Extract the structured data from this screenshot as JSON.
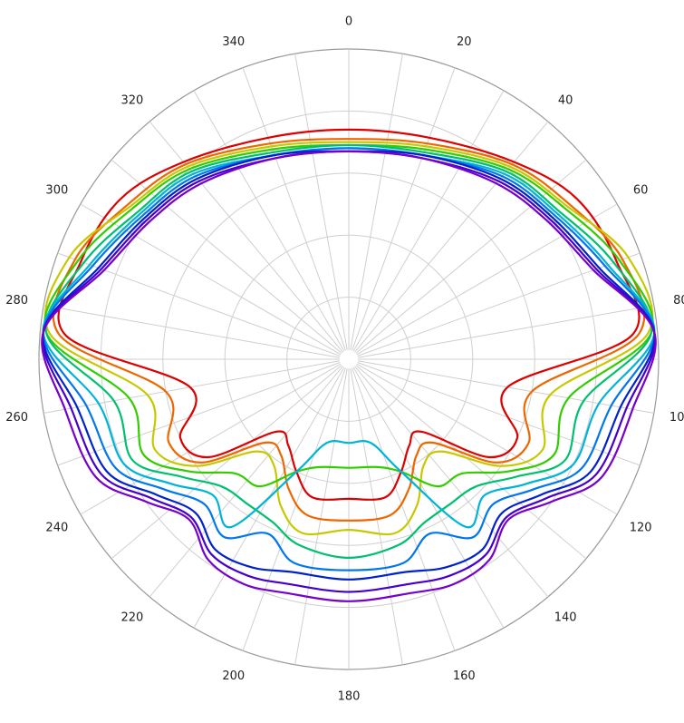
{
  "chart_data": {
    "type": "polar-line",
    "title": "",
    "angle_direction": "clockwise",
    "zero_location": "top",
    "angular_ticks": [
      "0",
      "20",
      "40",
      "60",
      "80",
      "100",
      "120",
      "140",
      "160",
      "180",
      "200",
      "220",
      "240",
      "260",
      "280",
      "300",
      "320",
      "340"
    ],
    "angular_tick_values": [
      0,
      20,
      40,
      60,
      80,
      100,
      120,
      140,
      160,
      180,
      200,
      220,
      240,
      260,
      280,
      300,
      320,
      340
    ],
    "radial_range": [
      0,
      1
    ],
    "radial_rings": [
      0.2,
      0.4,
      0.6,
      0.8,
      1.0
    ],
    "radial_tick_labels_visible": false,
    "spokes_every_deg": 10,
    "grid": true,
    "legend": "none",
    "angles": [
      0,
      20,
      40,
      55,
      70,
      85,
      100,
      115,
      125,
      135,
      145,
      155,
      165,
      180,
      195,
      205,
      215,
      225,
      235,
      245,
      260,
      275,
      290,
      305,
      320,
      340
    ],
    "series": [
      {
        "color": "#dd0000",
        "values": [
          0.74,
          0.76,
          0.83,
          0.9,
          0.92,
          0.92,
          0.52,
          0.6,
          0.55,
          0.33,
          0.34,
          0.4,
          0.46,
          0.45,
          0.46,
          0.4,
          0.34,
          0.33,
          0.55,
          0.6,
          0.52,
          0.92,
          0.92,
          0.9,
          0.83,
          0.76
        ]
      },
      {
        "color": "#ee6600",
        "values": [
          0.71,
          0.74,
          0.82,
          0.87,
          0.94,
          0.94,
          0.6,
          0.64,
          0.58,
          0.38,
          0.38,
          0.46,
          0.52,
          0.52,
          0.52,
          0.46,
          0.38,
          0.38,
          0.58,
          0.64,
          0.6,
          0.94,
          0.94,
          0.87,
          0.82,
          0.74
        ]
      },
      {
        "color": "#c8c800",
        "values": [
          0.7,
          0.73,
          0.81,
          0.86,
          0.96,
          0.97,
          0.66,
          0.69,
          0.6,
          0.42,
          0.42,
          0.52,
          0.58,
          0.55,
          0.58,
          0.52,
          0.42,
          0.42,
          0.6,
          0.69,
          0.66,
          0.97,
          0.96,
          0.86,
          0.81,
          0.73
        ]
      },
      {
        "color": "#33cc00",
        "values": [
          0.69,
          0.72,
          0.8,
          0.85,
          0.93,
          0.98,
          0.72,
          0.73,
          0.63,
          0.52,
          0.5,
          0.4,
          0.36,
          0.35,
          0.36,
          0.4,
          0.5,
          0.52,
          0.63,
          0.73,
          0.72,
          0.98,
          0.93,
          0.85,
          0.8,
          0.72
        ]
      },
      {
        "color": "#00c070",
        "values": [
          0.69,
          0.71,
          0.79,
          0.83,
          0.91,
          0.98,
          0.77,
          0.77,
          0.66,
          0.58,
          0.57,
          0.58,
          0.62,
          0.64,
          0.62,
          0.58,
          0.57,
          0.58,
          0.66,
          0.77,
          0.77,
          0.98,
          0.91,
          0.83,
          0.79,
          0.71
        ]
      },
      {
        "color": "#00b4d8",
        "values": [
          0.68,
          0.7,
          0.78,
          0.82,
          0.89,
          0.99,
          0.82,
          0.8,
          0.7,
          0.62,
          0.66,
          0.4,
          0.28,
          0.27,
          0.28,
          0.4,
          0.66,
          0.62,
          0.7,
          0.8,
          0.82,
          0.99,
          0.89,
          0.82,
          0.78,
          0.7
        ]
      },
      {
        "color": "#0077ee",
        "values": [
          0.68,
          0.7,
          0.77,
          0.81,
          0.88,
          0.99,
          0.86,
          0.83,
          0.73,
          0.66,
          0.7,
          0.62,
          0.68,
          0.68,
          0.68,
          0.62,
          0.7,
          0.66,
          0.73,
          0.83,
          0.86,
          0.99,
          0.88,
          0.81,
          0.77,
          0.7
        ]
      },
      {
        "color": "#0022cc",
        "values": [
          0.67,
          0.7,
          0.76,
          0.8,
          0.86,
          0.99,
          0.89,
          0.86,
          0.76,
          0.7,
          0.75,
          0.74,
          0.71,
          0.71,
          0.71,
          0.74,
          0.75,
          0.7,
          0.76,
          0.86,
          0.89,
          0.99,
          0.86,
          0.8,
          0.76,
          0.7
        ]
      },
      {
        "color": "#4400cc",
        "values": [
          0.67,
          0.69,
          0.75,
          0.79,
          0.85,
          0.99,
          0.91,
          0.88,
          0.78,
          0.72,
          0.77,
          0.77,
          0.75,
          0.75,
          0.75,
          0.77,
          0.77,
          0.72,
          0.78,
          0.88,
          0.91,
          0.99,
          0.85,
          0.79,
          0.75,
          0.69
        ]
      },
      {
        "color": "#7700cc",
        "values": [
          0.67,
          0.69,
          0.74,
          0.78,
          0.84,
          0.99,
          0.93,
          0.9,
          0.8,
          0.73,
          0.79,
          0.8,
          0.78,
          0.78,
          0.78,
          0.8,
          0.79,
          0.73,
          0.8,
          0.9,
          0.93,
          0.99,
          0.84,
          0.78,
          0.74,
          0.69
        ]
      }
    ]
  }
}
